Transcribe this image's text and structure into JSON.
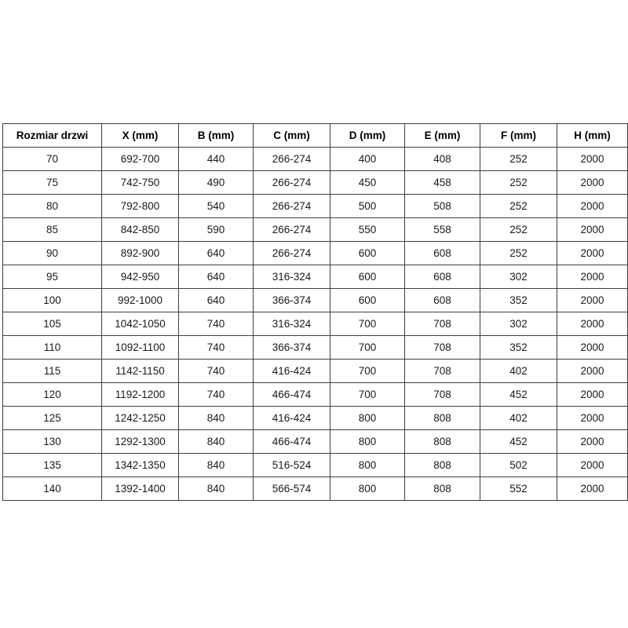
{
  "accent_colors": {
    "border": "#3f3f3f",
    "text": "#1a1a1a",
    "background": "#ffffff"
  },
  "table": {
    "headers": [
      "Rozmiar drzwi",
      "X (mm)",
      "B (mm)",
      "C (mm)",
      "D (mm)",
      "E (mm)",
      "F (mm)",
      "H (mm)"
    ],
    "rows": [
      [
        "70",
        "692-700",
        "440",
        "266-274",
        "400",
        "408",
        "252",
        "2000"
      ],
      [
        "75",
        "742-750",
        "490",
        "266-274",
        "450",
        "458",
        "252",
        "2000"
      ],
      [
        "80",
        "792-800",
        "540",
        "266-274",
        "500",
        "508",
        "252",
        "2000"
      ],
      [
        "85",
        "842-850",
        "590",
        "266-274",
        "550",
        "558",
        "252",
        "2000"
      ],
      [
        "90",
        "892-900",
        "640",
        "266-274",
        "600",
        "608",
        "252",
        "2000"
      ],
      [
        "95",
        "942-950",
        "640",
        "316-324",
        "600",
        "608",
        "302",
        "2000"
      ],
      [
        "100",
        "992-1000",
        "640",
        "366-374",
        "600",
        "608",
        "352",
        "2000"
      ],
      [
        "105",
        "1042-1050",
        "740",
        "316-324",
        "700",
        "708",
        "302",
        "2000"
      ],
      [
        "110",
        "1092-1100",
        "740",
        "366-374",
        "700",
        "708",
        "352",
        "2000"
      ],
      [
        "115",
        "1142-1150",
        "740",
        "416-424",
        "700",
        "708",
        "402",
        "2000"
      ],
      [
        "120",
        "1192-1200",
        "740",
        "466-474",
        "700",
        "708",
        "452",
        "2000"
      ],
      [
        "125",
        "1242-1250",
        "840",
        "416-424",
        "800",
        "808",
        "402",
        "2000"
      ],
      [
        "130",
        "1292-1300",
        "840",
        "466-474",
        "800",
        "808",
        "452",
        "2000"
      ],
      [
        "135",
        "1342-1350",
        "840",
        "516-524",
        "800",
        "808",
        "502",
        "2000"
      ],
      [
        "140",
        "1392-1400",
        "840",
        "566-574",
        "800",
        "808",
        "552",
        "2000"
      ]
    ]
  },
  "chart_data": {
    "type": "table",
    "title": "",
    "columns": [
      "Rozmiar drzwi",
      "X (mm)",
      "B (mm)",
      "C (mm)",
      "D (mm)",
      "E (mm)",
      "F (mm)",
      "H (mm)"
    ],
    "rows": [
      [
        "70",
        "692-700",
        "440",
        "266-274",
        "400",
        "408",
        "252",
        "2000"
      ],
      [
        "75",
        "742-750",
        "490",
        "266-274",
        "450",
        "458",
        "252",
        "2000"
      ],
      [
        "80",
        "792-800",
        "540",
        "266-274",
        "500",
        "508",
        "252",
        "2000"
      ],
      [
        "85",
        "842-850",
        "590",
        "266-274",
        "550",
        "558",
        "252",
        "2000"
      ],
      [
        "90",
        "892-900",
        "640",
        "266-274",
        "600",
        "608",
        "252",
        "2000"
      ],
      [
        "95",
        "942-950",
        "640",
        "316-324",
        "600",
        "608",
        "302",
        "2000"
      ],
      [
        "100",
        "992-1000",
        "640",
        "366-374",
        "600",
        "608",
        "352",
        "2000"
      ],
      [
        "105",
        "1042-1050",
        "740",
        "316-324",
        "700",
        "708",
        "302",
        "2000"
      ],
      [
        "110",
        "1092-1100",
        "740",
        "366-374",
        "700",
        "708",
        "352",
        "2000"
      ],
      [
        "115",
        "1142-1150",
        "740",
        "416-424",
        "700",
        "708",
        "402",
        "2000"
      ],
      [
        "120",
        "1192-1200",
        "740",
        "466-474",
        "700",
        "708",
        "452",
        "2000"
      ],
      [
        "125",
        "1242-1250",
        "840",
        "416-424",
        "800",
        "808",
        "402",
        "2000"
      ],
      [
        "130",
        "1292-1300",
        "840",
        "466-474",
        "800",
        "808",
        "452",
        "2000"
      ],
      [
        "135",
        "1342-1350",
        "840",
        "516-524",
        "800",
        "808",
        "502",
        "2000"
      ],
      [
        "140",
        "1392-1400",
        "840",
        "566-574",
        "800",
        "808",
        "552",
        "2000"
      ]
    ]
  }
}
